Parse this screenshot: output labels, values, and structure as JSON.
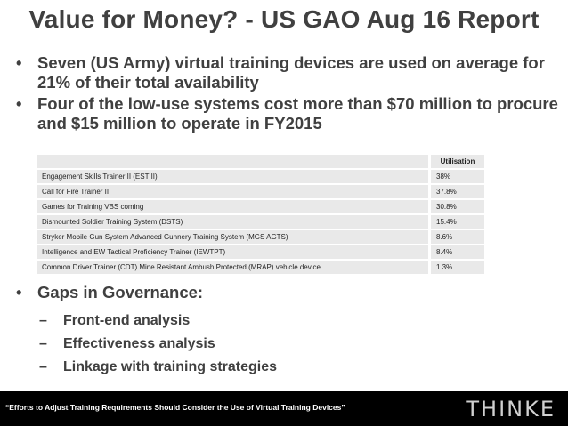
{
  "title": "Value for Money? - US GAO Aug 16 Report",
  "bullets": [
    "Seven (US Army) virtual training devices are used on average for 21% of their total availability",
    "Four of the low-use systems cost more than $70 million to procure and $15 million to operate in FY2015"
  ],
  "bullet_glyph": "•",
  "dash_glyph": "–",
  "table": {
    "header": "Utilisation",
    "rows": [
      {
        "name": "Engagement Skills Trainer II (EST II)",
        "value": "38%"
      },
      {
        "name": "Call for Fire Trainer II",
        "value": "37.8%"
      },
      {
        "name": "Games for Training VBS coming",
        "value": "30.8%"
      },
      {
        "name": "Dismounted Soldier Training System (DSTS)",
        "value": "15.4%"
      },
      {
        "name": "Stryker Mobile Gun System Advanced Gunnery Training System (MGS AGTS)",
        "value": "8.6%"
      },
      {
        "name": "Intelligence and EW Tactical Proficiency Trainer (IEWTPT)",
        "value": "8.4%"
      },
      {
        "name": "Common Driver Trainer (CDT) Mine Resistant Ambush Protected (MRAP) vehicle device",
        "value": "1.3%"
      }
    ]
  },
  "gaps": {
    "heading": "Gaps in Governance:",
    "items": [
      "Front-end analysis",
      "Effectiveness analysis",
      "Linkage with training strategies"
    ]
  },
  "footer": {
    "quote": "“Efforts to Adjust Training Requirements Should Consider the Use of Virtual Training Devices”",
    "logo": "THINKE"
  }
}
